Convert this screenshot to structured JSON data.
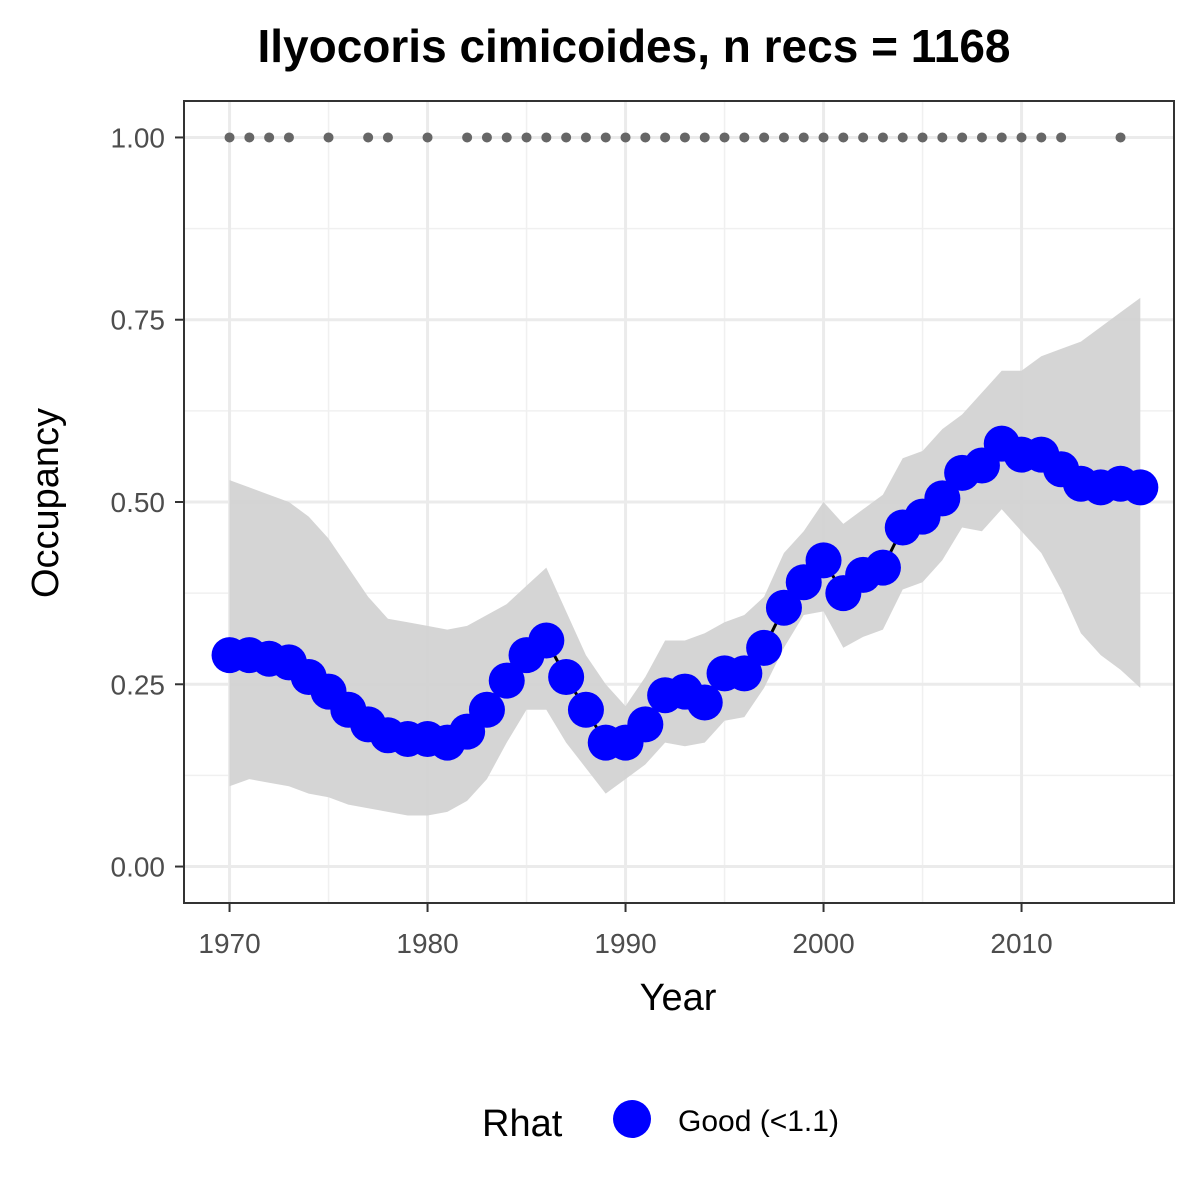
{
  "chart_data": {
    "type": "line",
    "title": "Ilyocoris cimicoides, n recs = 1168",
    "xlabel": "Year",
    "ylabel": "Occupancy",
    "xlim": [
      1967.7,
      2017.7
    ],
    "ylim": [
      -0.05,
      1.05
    ],
    "x_ticks": [
      1970,
      1980,
      1990,
      2000,
      2010
    ],
    "y_ticks": [
      0.0,
      0.25,
      0.5,
      0.75,
      1.0
    ],
    "x_tick_labels": [
      "1970",
      "1980",
      "1990",
      "2000",
      "2010"
    ],
    "y_tick_labels": [
      "0.00",
      "0.25",
      "0.50",
      "0.75",
      "1.00"
    ],
    "grid": true,
    "legend_position": "bottom",
    "legend_title": "Rhat",
    "series": [
      {
        "name": "Good (<1.1)",
        "color": "#0000ff",
        "x": [
          1970,
          1971,
          1972,
          1973,
          1974,
          1975,
          1976,
          1977,
          1978,
          1979,
          1980,
          1981,
          1982,
          1983,
          1984,
          1985,
          1986,
          1987,
          1988,
          1989,
          1990,
          1991,
          1992,
          1993,
          1994,
          1995,
          1996,
          1997,
          1998,
          1999,
          2000,
          2001,
          2002,
          2003,
          2004,
          2005,
          2006,
          2007,
          2008,
          2009,
          2010,
          2011,
          2012,
          2013,
          2014,
          2015,
          2016
        ],
        "y": [
          0.29,
          0.29,
          0.285,
          0.28,
          0.26,
          0.24,
          0.215,
          0.195,
          0.18,
          0.175,
          0.175,
          0.17,
          0.185,
          0.215,
          0.255,
          0.29,
          0.31,
          0.26,
          0.215,
          0.17,
          0.17,
          0.195,
          0.235,
          0.24,
          0.225,
          0.265,
          0.265,
          0.3,
          0.355,
          0.39,
          0.42,
          0.375,
          0.4,
          0.41,
          0.465,
          0.48,
          0.505,
          0.54,
          0.55,
          0.58,
          0.565,
          0.565,
          0.545,
          0.525,
          0.52,
          0.525,
          0.52
        ],
        "lower": [
          0.11,
          0.12,
          0.115,
          0.11,
          0.1,
          0.095,
          0.085,
          0.08,
          0.075,
          0.07,
          0.07,
          0.075,
          0.09,
          0.12,
          0.17,
          0.215,
          0.215,
          0.17,
          0.135,
          0.1,
          0.12,
          0.14,
          0.17,
          0.165,
          0.17,
          0.2,
          0.205,
          0.245,
          0.3,
          0.345,
          0.35,
          0.3,
          0.315,
          0.325,
          0.38,
          0.39,
          0.42,
          0.465,
          0.46,
          0.49,
          0.46,
          0.43,
          0.38,
          0.32,
          0.29,
          0.27,
          0.245
        ],
        "upper": [
          0.53,
          0.52,
          0.51,
          0.5,
          0.48,
          0.45,
          0.41,
          0.37,
          0.34,
          0.335,
          0.33,
          0.325,
          0.33,
          0.345,
          0.36,
          0.385,
          0.41,
          0.35,
          0.29,
          0.25,
          0.22,
          0.26,
          0.31,
          0.31,
          0.32,
          0.335,
          0.345,
          0.37,
          0.43,
          0.46,
          0.5,
          0.47,
          0.49,
          0.51,
          0.56,
          0.57,
          0.6,
          0.62,
          0.65,
          0.68,
          0.68,
          0.7,
          0.71,
          0.72,
          0.74,
          0.76,
          0.78
        ]
      }
    ],
    "record_years": [
      1970,
      1971,
      1972,
      1973,
      1975,
      1977,
      1978,
      1980,
      1982,
      1983,
      1984,
      1985,
      1986,
      1987,
      1988,
      1989,
      1990,
      1991,
      1992,
      1993,
      1994,
      1995,
      1996,
      1997,
      1998,
      1999,
      2000,
      2001,
      2002,
      2003,
      2004,
      2005,
      2006,
      2007,
      2008,
      2009,
      2010,
      2011,
      2012,
      2015
    ],
    "record_marker_value": 1.0,
    "record_marker_color": "#666666",
    "ribbon_color": "#d3d3d3",
    "line_color": "#000000"
  }
}
